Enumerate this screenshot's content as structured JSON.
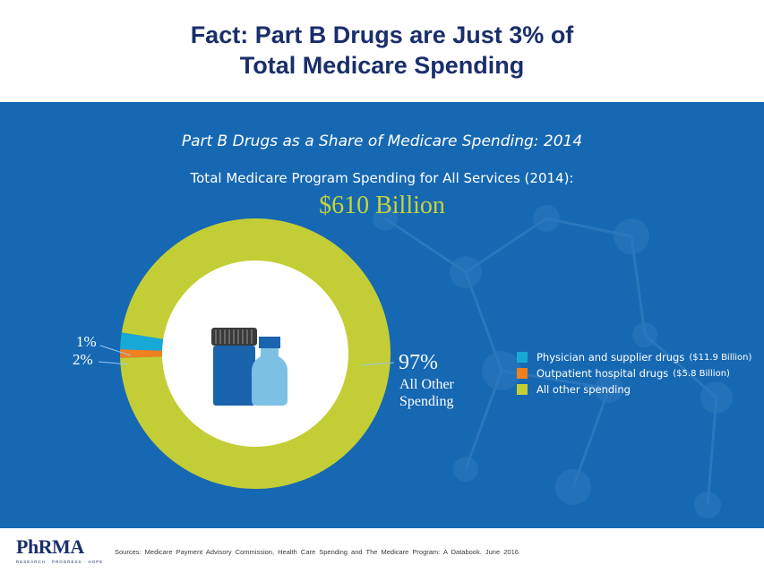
{
  "slide": {
    "title_line1": "Fact: Part B Drugs are Just 3% of",
    "title_line2": "Total Medicare Spending"
  },
  "chart_data": {
    "type": "pie",
    "style": "donut",
    "title": "Part B Drugs as a Share of Medicare Spending: 2014",
    "total_label": "Total Medicare Program Spending for All Services (2014):",
    "total_value": "$610 Billion",
    "series": [
      {
        "name": "Physician and supplier drugs",
        "amount": "($11.9 Billion)",
        "value": 2,
        "value_label": "2%",
        "color": "#17a9d6"
      },
      {
        "name": "Outpatient hospital drugs",
        "amount": "($5.8 Billion)",
        "value": 1,
        "value_label": "1%",
        "color": "#f07f1f"
      },
      {
        "name": "All other spending",
        "amount": "",
        "value": 97,
        "value_label": "97%",
        "color": "#c3ce36"
      }
    ],
    "big_label_value": "97%",
    "big_label_line1": "All Other",
    "big_label_line2": "Spending",
    "legend_position": "right"
  },
  "footer": {
    "logo_text": "PhRMA",
    "logo_tagline": "RESEARCH · PROGRESS · HOPE",
    "source": "Sources: Medicare Payment Advisory Commission, Health Care Spending and The Medicare Program: A Databook. June 2016."
  }
}
